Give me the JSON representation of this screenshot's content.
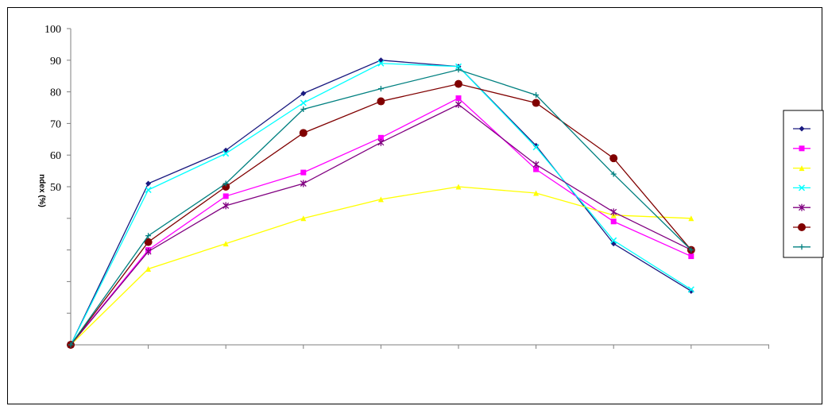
{
  "chart_data": {
    "type": "line",
    "title": "",
    "xlabel": "",
    "ylabel": "ndex (%)",
    "ylim": [
      0,
      100
    ],
    "y_tick_labels": [
      "50",
      "60",
      "70",
      "80",
      "90",
      "100"
    ],
    "legend_position": "right",
    "grid": false,
    "x": [
      1,
      2,
      3,
      4,
      5,
      6,
      7,
      8,
      9
    ],
    "series": [
      {
        "color": "#1a1a80",
        "marker": "diamond",
        "values": [
          0,
          51,
          61.5,
          79.5,
          90,
          88,
          63,
          32,
          17
        ]
      },
      {
        "color": "#ff00ff",
        "marker": "square",
        "values": [
          0,
          30,
          47,
          54.5,
          65.5,
          78,
          55.5,
          39,
          28
        ]
      },
      {
        "color": "#ffff00",
        "marker": "triangle",
        "values": [
          0,
          24,
          32,
          40,
          46,
          50,
          48,
          41,
          40
        ]
      },
      {
        "color": "#00ffff",
        "marker": "x",
        "values": [
          0,
          49,
          60.5,
          76.5,
          89,
          88,
          62.5,
          33,
          17.5
        ]
      },
      {
        "color": "#800080",
        "marker": "star",
        "values": [
          0,
          29.5,
          44,
          51,
          64,
          76,
          57,
          42,
          30
        ]
      },
      {
        "color": "#800000",
        "marker": "circle",
        "values": [
          0,
          32.5,
          50,
          67,
          77,
          82.5,
          76.5,
          59,
          30
        ]
      },
      {
        "color": "#008080",
        "marker": "plus",
        "values": [
          0,
          34.5,
          51,
          74.5,
          81,
          87,
          79,
          54,
          30
        ]
      }
    ]
  }
}
